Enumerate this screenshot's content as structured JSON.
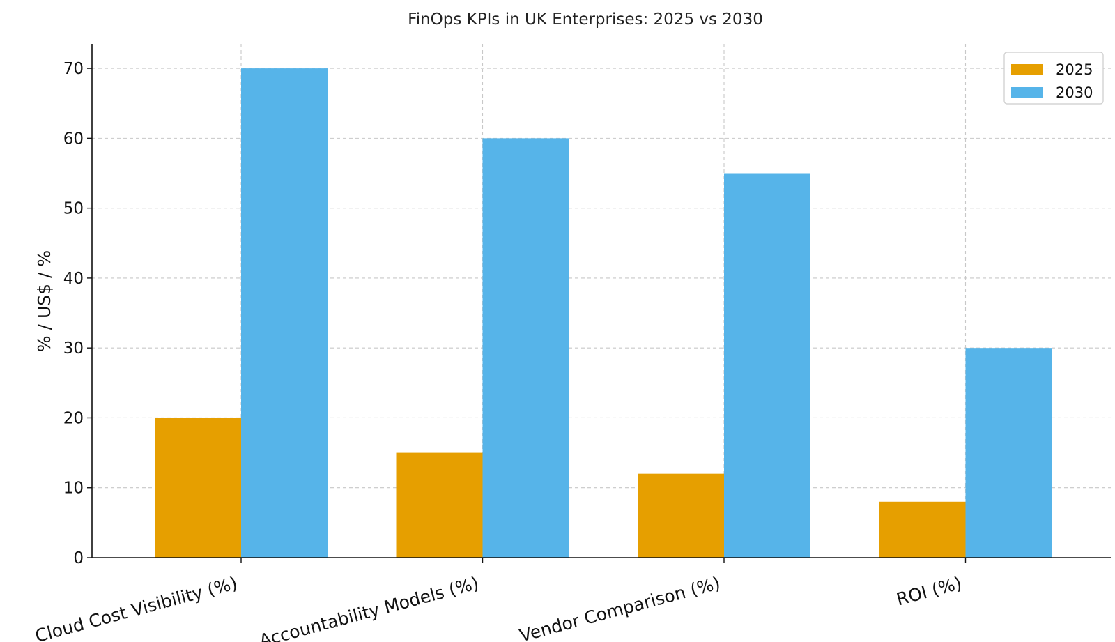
{
  "chart_data": {
    "type": "bar",
    "title": "FinOps KPIs in UK Enterprises: 2025 vs 2030",
    "xlabel": "",
    "ylabel": "% / US$ / %",
    "categories": [
      "Cloud Cost Visibility (%)",
      "Accountability Models (%)",
      "Vendor Comparison (%)",
      "ROI (%)"
    ],
    "series": [
      {
        "name": "2025",
        "color": "#E69F00",
        "values": [
          20,
          15,
          12,
          8
        ]
      },
      {
        "name": "2030",
        "color": "#56B4E9",
        "values": [
          70,
          60,
          55,
          30
        ]
      }
    ],
    "ylim": [
      0,
      73.5
    ],
    "yticks": [
      0,
      10,
      20,
      30,
      40,
      50,
      60,
      70
    ],
    "grid": true,
    "legend_position": "top-right"
  }
}
